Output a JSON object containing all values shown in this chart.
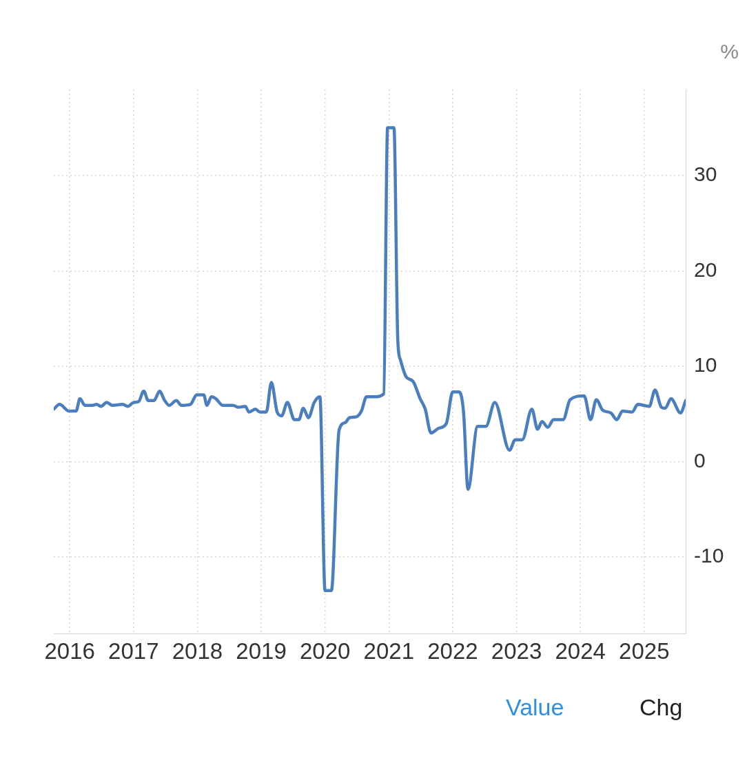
{
  "chart_data": {
    "type": "line",
    "ylabel": "%",
    "x": [
      2015.75,
      2015.84,
      2015.99,
      2016.1,
      2016.16,
      2016.24,
      2016.35,
      2016.42,
      2016.49,
      2016.58,
      2016.67,
      2016.83,
      2016.91,
      2017.0,
      2017.08,
      2017.16,
      2017.23,
      2017.32,
      2017.41,
      2017.48,
      2017.56,
      2017.67,
      2017.75,
      2017.89,
      2017.99,
      2018.1,
      2018.15,
      2018.22,
      2018.29,
      2018.4,
      2018.56,
      2018.64,
      2018.75,
      2018.81,
      2018.91,
      2018.98,
      2019.08,
      2019.16,
      2019.25,
      2019.32,
      2019.41,
      2019.52,
      2019.59,
      2019.66,
      2019.74,
      2019.83,
      2019.92,
      2020.0,
      2020.1,
      2020.22,
      2020.32,
      2020.38,
      2020.49,
      2020.57,
      2020.65,
      2020.78,
      2020.92,
      2020.98,
      2021.08,
      2021.14,
      2021.18,
      2021.27,
      2021.38,
      2021.49,
      2021.57,
      2021.66,
      2021.78,
      2021.9,
      2022.0,
      2022.1,
      2022.17,
      2022.24,
      2022.39,
      2022.52,
      2022.66,
      2022.89,
      2022.98,
      2023.09,
      2023.24,
      2023.33,
      2023.4,
      2023.49,
      2023.58,
      2023.73,
      2023.84,
      2024.06,
      2024.16,
      2024.25,
      2024.35,
      2024.48,
      2024.57,
      2024.66,
      2024.81,
      2024.9,
      2025.08,
      2025.17,
      2025.27,
      2025.33,
      2025.42,
      2025.57,
      2025.65
    ],
    "series": [
      {
        "color": "#4a7ebf",
        "values": [
          5.5,
          6.0,
          5.3,
          5.3,
          6.6,
          5.9,
          5.9,
          6.0,
          5.8,
          6.2,
          5.9,
          6.0,
          5.8,
          6.2,
          6.3,
          7.4,
          6.4,
          6.4,
          7.4,
          6.5,
          5.9,
          6.4,
          5.9,
          6.0,
          7.0,
          7.0,
          5.9,
          6.8,
          6.6,
          5.9,
          5.9,
          5.7,
          5.8,
          5.2,
          5.5,
          5.2,
          5.2,
          8.3,
          5.2,
          4.8,
          6.2,
          4.4,
          4.4,
          5.6,
          4.6,
          6.2,
          6.8,
          -13.5,
          -13.5,
          3.3,
          4.1,
          4.6,
          4.7,
          5.3,
          6.8,
          6.8,
          7.1,
          35.0,
          35.0,
          12.7,
          10.7,
          8.9,
          8.4,
          6.6,
          5.5,
          3.0,
          3.5,
          4.0,
          7.3,
          7.3,
          5.2,
          -2.9,
          3.7,
          3.7,
          6.2,
          1.2,
          2.3,
          2.3,
          5.5,
          3.4,
          4.2,
          3.6,
          4.4,
          4.4,
          6.5,
          6.9,
          4.4,
          6.5,
          5.4,
          5.1,
          4.4,
          5.3,
          5.2,
          6.0,
          5.8,
          7.5,
          5.7,
          5.6,
          6.6,
          5.1,
          6.4
        ]
      }
    ],
    "xlim": [
      2015.75,
      2025.65
    ],
    "xticks": [
      2016,
      2017,
      2018,
      2019,
      2020,
      2021,
      2022,
      2023,
      2024,
      2025
    ],
    "ylim": [
      -18,
      39
    ],
    "yticks": [
      -10,
      0,
      10,
      20,
      30
    ],
    "grid": true,
    "legend": false,
    "marker": "none",
    "line_style": "solid",
    "annotations": [
      "Value",
      "Chg"
    ]
  }
}
